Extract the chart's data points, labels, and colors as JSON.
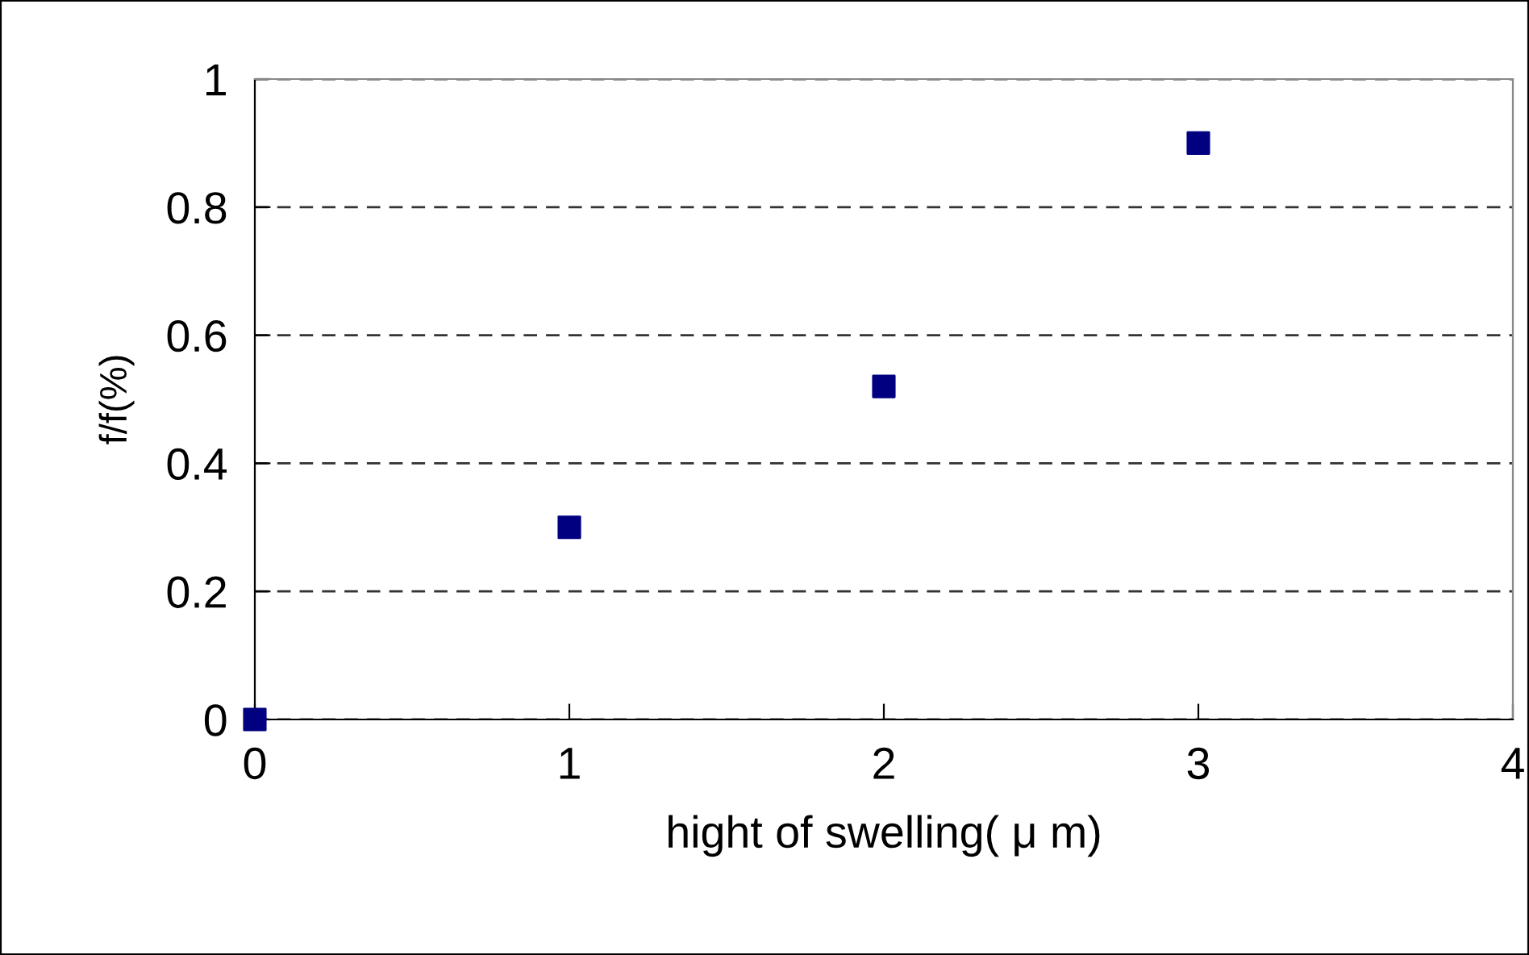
{
  "chart_data": {
    "type": "scatter",
    "xlabel": "hight of swelling( μ m)",
    "ylabel": "f/f(%)",
    "x": [
      0,
      1,
      2,
      3
    ],
    "series": [
      {
        "color": "#000080",
        "values": [
          0,
          0.3,
          0.52,
          0.9
        ]
      }
    ],
    "xlim": [
      0,
      4
    ],
    "xticks": [
      0,
      1,
      2,
      3,
      4
    ],
    "ylim": [
      0,
      1
    ],
    "yticks": [
      0,
      0.2,
      0.4,
      0.6,
      0.8,
      1
    ],
    "grid": "y",
    "marker": "square",
    "legend": false
  }
}
